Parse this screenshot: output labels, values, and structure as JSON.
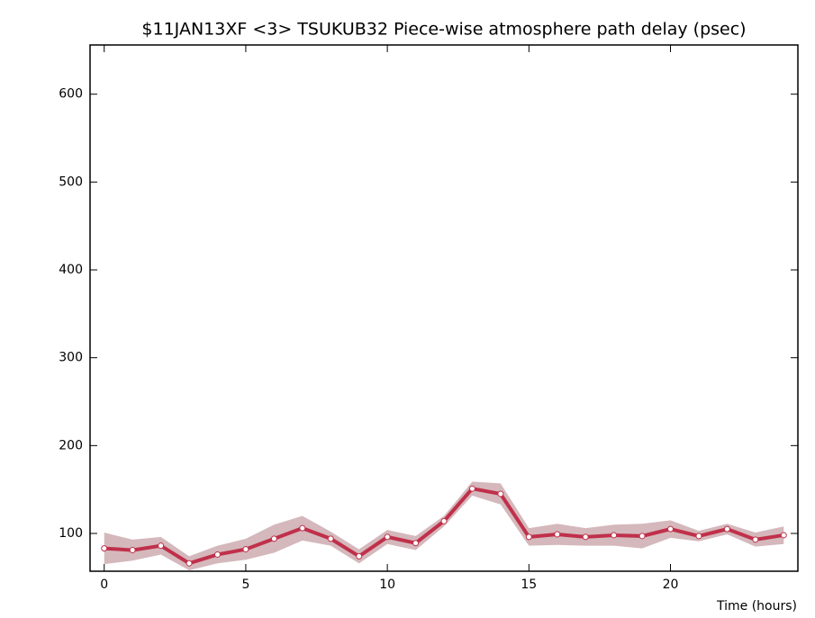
{
  "chart_data": {
    "type": "line",
    "title": "$11JAN13XF <3>  TSUKUB32  Piece-wise atmosphere path delay (psec)",
    "x_label": "Time (hours)",
    "x": [
      0,
      1,
      2,
      3,
      4,
      5,
      6,
      7,
      8,
      9,
      10,
      11,
      12,
      13,
      14,
      15,
      16,
      17,
      18,
      19,
      20,
      21,
      22,
      23,
      24
    ],
    "values": [
      83,
      81,
      86,
      66,
      76,
      82,
      94,
      106,
      94,
      74,
      96,
      89,
      114,
      151,
      145,
      96,
      99,
      96,
      98,
      97,
      105,
      97,
      105,
      93,
      98
    ],
    "errors": [
      18,
      12,
      10,
      8,
      10,
      12,
      16,
      14,
      8,
      8,
      8,
      8,
      6,
      8,
      12,
      10,
      12,
      10,
      12,
      14,
      10,
      6,
      6,
      8,
      10
    ],
    "color": "#c0304a",
    "band_color": "#d4b8bc",
    "xlim": [
      -0.5,
      24.5
    ],
    "ylim": [
      57,
      656
    ],
    "xticks": [
      0,
      5,
      10,
      15,
      20
    ],
    "yticks": [
      100,
      200,
      300,
      400,
      500,
      600
    ]
  }
}
